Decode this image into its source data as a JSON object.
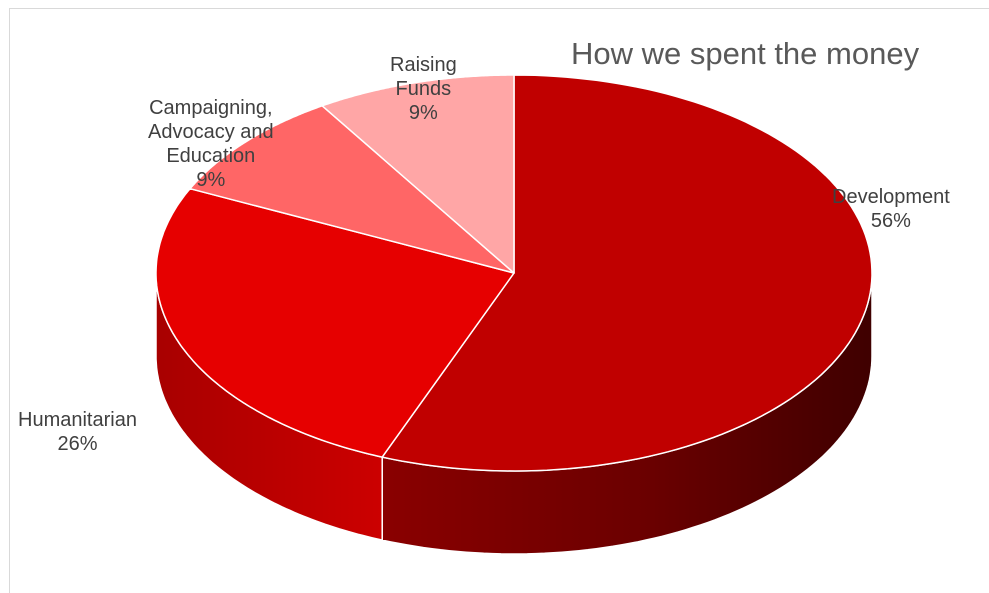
{
  "chart_data": {
    "type": "pie",
    "style": "3d",
    "title": "How we spent the money",
    "slices": [
      {
        "name": "Development",
        "value": 56,
        "label": "56%",
        "color": "#c00000"
      },
      {
        "name": "Humanitarian",
        "value": 26,
        "label": "26%",
        "color": "#e60000"
      },
      {
        "name": "Campaigning, Advocacy and Education",
        "value": 9,
        "label": "9%",
        "color": "#ff6666"
      },
      {
        "name": "Raising Funds",
        "value": 9,
        "label": "9%",
        "color": "#ffa6a6"
      }
    ]
  },
  "labels": {
    "development": [
      "Development",
      "56%"
    ],
    "humanitarian": [
      "Humanitarian",
      "26%"
    ],
    "campaigning": [
      "Campaigning,",
      "Advocacy and",
      "Education",
      "9%"
    ],
    "raising": [
      "Raising",
      "Funds",
      "9%"
    ]
  }
}
